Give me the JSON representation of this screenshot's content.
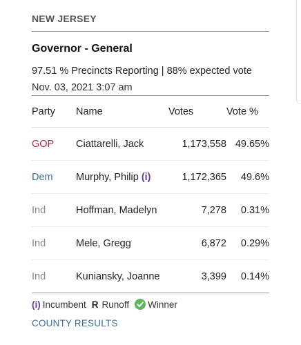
{
  "header": {
    "state": "NEW JERSEY",
    "race_title": "Governor - General",
    "reporting": "97.51 % Precincts Reporting | 88% expected vote",
    "timestamp": "Nov. 03, 2021 3:07 am"
  },
  "table": {
    "columns": {
      "party": "Party",
      "name": "Name",
      "votes": "Votes",
      "pct": "Vote %"
    },
    "rows": [
      {
        "party": "GOP",
        "name": "Ciattarelli, Jack",
        "incumbent": "",
        "votes": "1,173,558",
        "pct": "49.65%"
      },
      {
        "party": "Dem",
        "name": "Murphy, Philip",
        "incumbent": "(i)",
        "votes": "1,172,365",
        "pct": "49.6%"
      },
      {
        "party": "Ind",
        "name": "Hoffman, Madelyn",
        "incumbent": "",
        "votes": "7,278",
        "pct": "0.31%"
      },
      {
        "party": "Ind",
        "name": "Mele, Gregg",
        "incumbent": "",
        "votes": "6,872",
        "pct": "0.29%"
      },
      {
        "party": "Ind",
        "name": "Kuniansky, Joanne",
        "incumbent": "",
        "votes": "3,399",
        "pct": "0.14%"
      }
    ]
  },
  "legend": {
    "incumbent_mark": "(i)",
    "incumbent_label": "Incumbent",
    "runoff_mark": "R",
    "runoff_label": "Runoff",
    "winner_label": "Winner",
    "winner_icon": "check-circle-icon"
  },
  "links": {
    "county_results": "COUNTY RESULTS"
  },
  "colors": {
    "gop": "#b52b3a",
    "dem": "#3d6e9e",
    "ind": "#888888",
    "incumbent": "#6a3d9a",
    "winner": "#5cb85c",
    "link": "#3d6e9e"
  }
}
